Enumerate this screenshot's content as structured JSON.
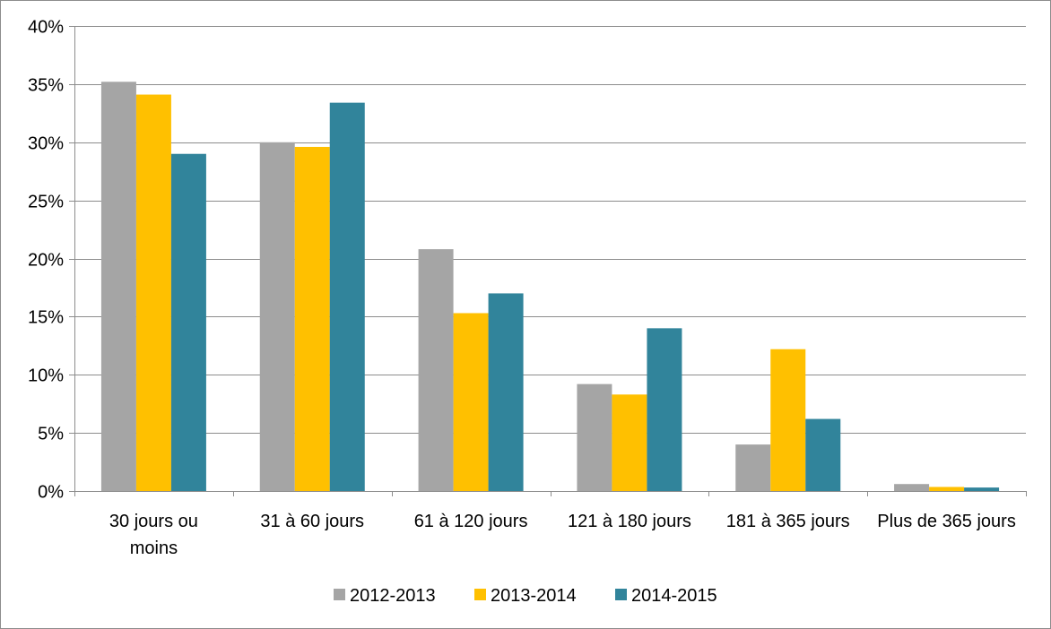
{
  "chart_data": {
    "type": "bar",
    "title": "",
    "xlabel": "",
    "ylabel": "",
    "categories": [
      [
        "30 jours ou",
        "moins"
      ],
      [
        "31 à 60 jours"
      ],
      [
        "61 à 120 jours"
      ],
      [
        "121 à 180 jours"
      ],
      [
        "181 à 365 jours"
      ],
      [
        "Plus de 365 jours"
      ]
    ],
    "series": [
      {
        "name": "2012-2013",
        "color": "#a5a5a5",
        "values": [
          35.2,
          30.0,
          20.8,
          9.2,
          4.0,
          0.6
        ]
      },
      {
        "name": "2013-2014",
        "color": "#ffc000",
        "values": [
          34.1,
          29.6,
          15.3,
          8.3,
          12.2,
          0.35
        ]
      },
      {
        "name": "2014-2015",
        "color": "#31849b",
        "values": [
          29.0,
          33.4,
          17.0,
          14.0,
          6.2,
          0.3
        ]
      }
    ],
    "ylim": [
      0,
      40
    ],
    "yticks": [
      0,
      5,
      10,
      15,
      20,
      25,
      30,
      35,
      40
    ],
    "ytick_labels": [
      "0%",
      "5%",
      "10%",
      "15%",
      "20%",
      "25%",
      "30%",
      "35%",
      "40%"
    ],
    "grid": true,
    "legend_position": "bottom"
  }
}
